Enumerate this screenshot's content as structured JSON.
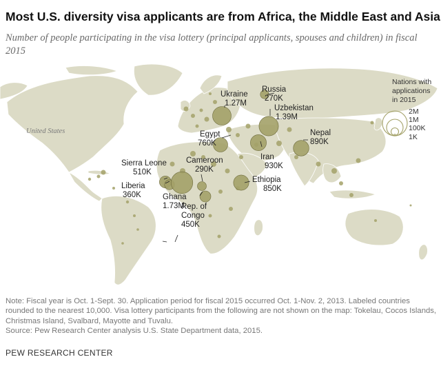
{
  "title": "Most U.S. diversity visa applicants are from Africa, the Middle East and Asia",
  "subtitle": "Number of people participating in the visa lottery (principal applicants, spouses and children) in fiscal 2015",
  "map": {
    "region_label": "United States",
    "countries": [
      {
        "name": "Russia",
        "value": "270K"
      },
      {
        "name": "Ukraine",
        "value": "1.27M"
      },
      {
        "name": "Uzbekistan",
        "value": "1.39M"
      },
      {
        "name": "Egypt",
        "value": "760K"
      },
      {
        "name": "Nepal",
        "value": "890K"
      },
      {
        "name": "Iran",
        "value": "930K"
      },
      {
        "name": "Sierra Leone",
        "value": "510K"
      },
      {
        "name": "Cameroon",
        "value": "290K"
      },
      {
        "name": "Liberia",
        "value": "360K"
      },
      {
        "name": "Ethiopia",
        "value": "850K"
      },
      {
        "name": "Ghana",
        "value": "1.73M"
      },
      {
        "name": "Rep. of Congo",
        "value": "450K"
      }
    ],
    "colors": {
      "land": "#dcdbc6",
      "bubble_fill": "#a3a168",
      "bubble_stroke": "#6c6a3c",
      "water": "#ffffff"
    }
  },
  "legend": {
    "fill_label": "Nations with applications in 2015",
    "size_labels": [
      "2M",
      "1M",
      "100K",
      "1K"
    ]
  },
  "note": [
    "Note: Fiscal year is Oct. 1-Sept. 30. Application period for fiscal 2015 occurred Oct. 1-Nov. 2, 2013. Labeled countries",
    "rounded to the nearest 10,000. Visa lottery participants from the following are not shown on the map: Tokelau, Cocos Islands,",
    "Christmas Island, Svalbard, Mayotte and Tuvalu.",
    "Source: Pew Research Center analysis U.S. State Department data, 2015."
  ],
  "source_org": "PEW RESEARCH CENTER"
}
